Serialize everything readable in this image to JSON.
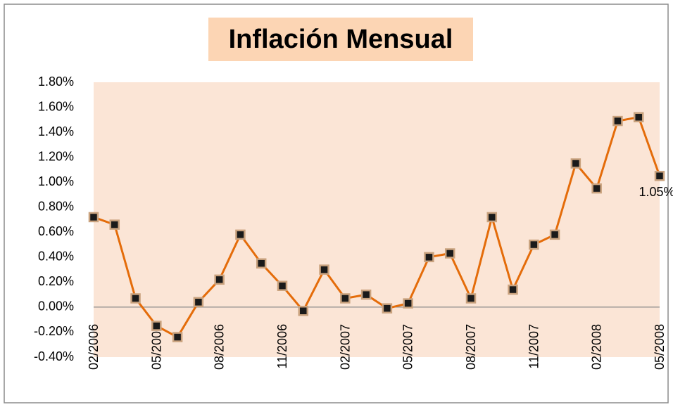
{
  "chart_data": {
    "type": "line",
    "title": "Inflación Mensual",
    "categories": [
      "02/2006",
      null,
      null,
      "05/2006",
      null,
      null,
      "08/2006",
      null,
      null,
      "11/2006",
      null,
      null,
      "02/2007",
      null,
      null,
      "05/2007",
      null,
      null,
      "08/2007",
      null,
      null,
      "11/2007",
      null,
      null,
      "02/2008",
      null,
      null,
      "05/2008"
    ],
    "series": [
      {
        "name": "Inflación Mensual",
        "color": "#e46c0a",
        "values": [
          0.72,
          0.66,
          0.07,
          -0.15,
          -0.24,
          0.04,
          0.22,
          0.58,
          0.35,
          0.17,
          -0.03,
          0.3,
          0.07,
          0.1,
          -0.01,
          0.03,
          0.4,
          0.43,
          0.07,
          0.72,
          0.14,
          0.5,
          0.58,
          1.15,
          0.95,
          1.49,
          1.52,
          1.05
        ],
        "value_labels": [
          null,
          null,
          null,
          null,
          null,
          null,
          null,
          null,
          null,
          null,
          null,
          null,
          null,
          null,
          null,
          null,
          null,
          null,
          null,
          null,
          null,
          null,
          null,
          null,
          null,
          null,
          null,
          "1.05%"
        ]
      }
    ],
    "ylim": [
      -0.4,
      1.8
    ],
    "yticks": [
      {
        "value": -0.4,
        "label": "-0.40%"
      },
      {
        "value": -0.2,
        "label": "-0.20%"
      },
      {
        "value": 0,
        "label": "0.00%"
      },
      {
        "value": 0.2,
        "label": "0.20%"
      },
      {
        "value": 0.4,
        "label": "0.40%"
      },
      {
        "value": 0.6,
        "label": "0.60%"
      },
      {
        "value": 0.8,
        "label": "0.80%"
      },
      {
        "value": 1.0,
        "label": "1.00%"
      },
      {
        "value": 1.2,
        "label": "1.20%"
      },
      {
        "value": 1.4,
        "label": "1.40%"
      },
      {
        "value": 1.6,
        "label": "1.60%"
      },
      {
        "value": 1.8,
        "label": "1.80%"
      }
    ],
    "grid": false
  }
}
